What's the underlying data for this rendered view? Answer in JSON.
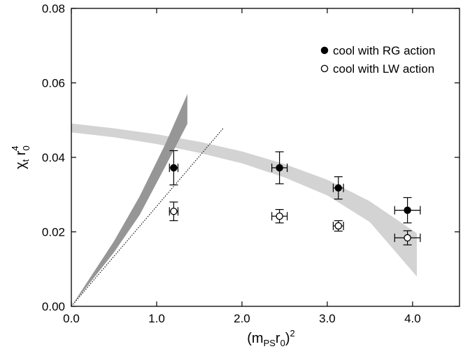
{
  "chart_data": {
    "type": "scatter",
    "title": "",
    "xlabel": {
      "base": "(m",
      "sub1": "PS",
      "mid": "r",
      "sub2": "0",
      "tail": ")",
      "sup": "2"
    },
    "ylabel": {
      "base": "χ",
      "sub1": "t",
      "mid": " r",
      "sup": "4",
      "sub2": "0"
    },
    "xlim": [
      0,
      4.55
    ],
    "ylim": [
      0,
      0.08
    ],
    "x_ticks": [
      0.0,
      1.0,
      2.0,
      3.0,
      4.0
    ],
    "x_tick_labels": [
      "0.0",
      "1.0",
      "2.0",
      "3.0",
      "4.0"
    ],
    "y_ticks": [
      0.0,
      0.02,
      0.04,
      0.06,
      0.08
    ],
    "y_tick_labels": [
      "0.00",
      "0.02",
      "0.04",
      "0.06",
      "0.08"
    ],
    "grid": false,
    "legend_position": "top-right",
    "series": [
      {
        "name": "cool with RG action",
        "marker": "filled-circle",
        "color": "#000000",
        "points": [
          {
            "x": 1.2,
            "y": 0.0372,
            "xerr": 0.05,
            "yerr": 0.0046
          },
          {
            "x": 2.44,
            "y": 0.0372,
            "xerr": 0.09,
            "yerr": 0.0043
          },
          {
            "x": 3.13,
            "y": 0.0318,
            "xerr": 0.06,
            "yerr": 0.003
          },
          {
            "x": 3.94,
            "y": 0.0258,
            "xerr": 0.15,
            "yerr": 0.0034
          }
        ]
      },
      {
        "name": "cool with LW action",
        "marker": "open-circle",
        "color": "#000000",
        "points": [
          {
            "x": 1.2,
            "y": 0.0255,
            "xerr": 0.05,
            "yerr": 0.0025
          },
          {
            "x": 2.44,
            "y": 0.0242,
            "xerr": 0.09,
            "yerr": 0.0018
          },
          {
            "x": 3.13,
            "y": 0.0216,
            "xerr": 0.06,
            "yerr": 0.0014
          },
          {
            "x": 3.94,
            "y": 0.0184,
            "xerr": 0.15,
            "yerr": 0.0019
          }
        ]
      }
    ],
    "bands": [
      {
        "color": "#d3d3d3",
        "upper": [
          [
            0.0,
            0.0491
          ],
          [
            0.5,
            0.0478
          ],
          [
            1.0,
            0.0462
          ],
          [
            1.5,
            0.0442
          ],
          [
            2.0,
            0.0416
          ],
          [
            2.5,
            0.0382
          ],
          [
            3.0,
            0.034
          ],
          [
            3.5,
            0.0282
          ],
          [
            4.05,
            0.0196
          ]
        ],
        "lower": [
          [
            0.0,
            0.0467
          ],
          [
            0.5,
            0.0454
          ],
          [
            1.0,
            0.0436
          ],
          [
            1.5,
            0.0412
          ],
          [
            2.0,
            0.0384
          ],
          [
            2.5,
            0.0346
          ],
          [
            3.0,
            0.0298
          ],
          [
            3.5,
            0.0226
          ],
          [
            4.05,
            0.008
          ]
        ]
      },
      {
        "color": "#969696",
        "upper": [
          [
            0.0,
            0.0
          ],
          [
            0.5,
            0.0175
          ],
          [
            0.8,
            0.0295
          ],
          [
            1.1,
            0.0435
          ],
          [
            1.36,
            0.057
          ]
        ],
        "lower": [
          [
            0.0,
            0.0
          ],
          [
            0.5,
            0.0145
          ],
          [
            0.8,
            0.0245
          ],
          [
            1.1,
            0.0375
          ],
          [
            1.36,
            0.049
          ]
        ]
      }
    ],
    "lines": [
      {
        "style": "dotted",
        "color": "#000000",
        "points": [
          [
            0.0,
            0.0
          ],
          [
            1.78,
            0.0478
          ]
        ]
      }
    ]
  }
}
